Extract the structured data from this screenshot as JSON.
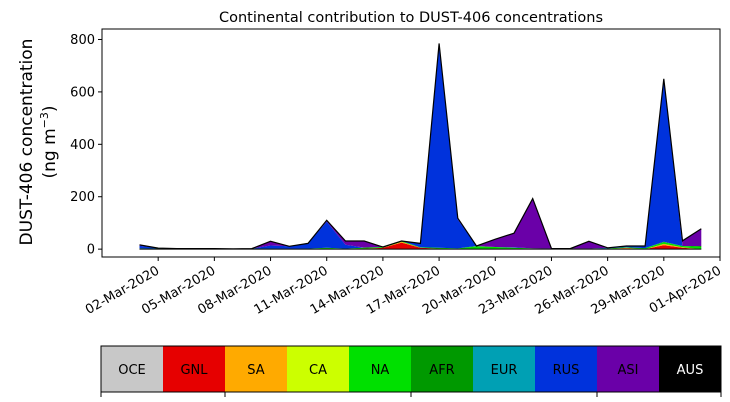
{
  "chart_data": {
    "type": "area",
    "title": "Continental contribution to DUST-406 concentrations",
    "ylabel_line1": "DUST-406 concentration",
    "ylabel_line2_prefix": "(ng m",
    "ylabel_line2_sup": "−3",
    "ylabel_line2_suffix": ")",
    "xlabel": "",
    "ylim": [
      -30,
      840
    ],
    "yticks": [
      0,
      200,
      400,
      600,
      800
    ],
    "xlim": [
      "2020-02-28",
      "2020-04-01"
    ],
    "xticks": [
      "02-Mar-2020",
      "05-Mar-2020",
      "08-Mar-2020",
      "11-Mar-2020",
      "14-Mar-2020",
      "17-Mar-2020",
      "20-Mar-2020",
      "23-Mar-2020",
      "26-Mar-2020",
      "29-Mar-2020",
      "01-Apr-2020"
    ],
    "x": [
      "2020-03-01",
      "2020-03-02",
      "2020-03-03",
      "2020-03-04",
      "2020-03-05",
      "2020-03-06",
      "2020-03-07",
      "2020-03-08",
      "2020-03-09",
      "2020-03-10",
      "2020-03-11",
      "2020-03-12",
      "2020-03-13",
      "2020-03-14",
      "2020-03-15",
      "2020-03-16",
      "2020-03-17",
      "2020-03-18",
      "2020-03-19",
      "2020-03-20",
      "2020-03-21",
      "2020-03-22",
      "2020-03-23",
      "2020-03-24",
      "2020-03-25",
      "2020-03-26",
      "2020-03-27",
      "2020-03-28",
      "2020-03-29",
      "2020-03-30",
      "2020-03-31"
    ],
    "series": [
      {
        "name": "OCE",
        "color": "#c8c8c8",
        "values": [
          0,
          0,
          0,
          0,
          0,
          0,
          0,
          0,
          0,
          0,
          0,
          0,
          0,
          0,
          0,
          0,
          0,
          0,
          0,
          0,
          0,
          0,
          0,
          0,
          0,
          0,
          0,
          0,
          0,
          0,
          0
        ]
      },
      {
        "name": "GNL",
        "color": "#e60000",
        "values": [
          0,
          0,
          0,
          0,
          0,
          0,
          0,
          0,
          0,
          0,
          2,
          0,
          2,
          5,
          25,
          5,
          2,
          0,
          0,
          0,
          0,
          0,
          0,
          0,
          0,
          0,
          3,
          0,
          15,
          5,
          0
        ]
      },
      {
        "name": "SA",
        "color": "#ffaa00",
        "values": [
          0,
          0,
          0,
          0,
          0,
          0,
          0,
          0,
          0,
          0,
          0,
          0,
          0,
          0,
          3,
          0,
          0,
          0,
          0,
          0,
          0,
          0,
          0,
          0,
          0,
          0,
          2,
          0,
          5,
          2,
          0
        ]
      },
      {
        "name": "CA",
        "color": "#ccff00",
        "values": [
          0,
          0,
          0,
          0,
          0,
          0,
          0,
          0,
          0,
          0,
          0,
          0,
          0,
          0,
          0,
          0,
          0,
          0,
          0,
          0,
          0,
          0,
          0,
          0,
          0,
          0,
          0,
          0,
          0,
          0,
          0
        ]
      },
      {
        "name": "NA",
        "color": "#00e000",
        "values": [
          3,
          2,
          1,
          1,
          2,
          1,
          2,
          2,
          1,
          2,
          3,
          2,
          4,
          3,
          3,
          2,
          3,
          3,
          10,
          8,
          5,
          3,
          2,
          2,
          2,
          3,
          2,
          4,
          6,
          5,
          8
        ]
      },
      {
        "name": "AFR",
        "color": "#009900",
        "values": [
          0,
          0,
          0,
          0,
          0,
          0,
          0,
          0,
          0,
          0,
          0,
          0,
          0,
          0,
          0,
          0,
          0,
          0,
          2,
          0,
          0,
          0,
          0,
          0,
          0,
          0,
          0,
          0,
          2,
          0,
          4
        ]
      },
      {
        "name": "EUR",
        "color": "#00a0b4",
        "values": [
          0,
          0,
          0,
          0,
          0,
          0,
          0,
          0,
          0,
          0,
          0,
          0,
          0,
          0,
          0,
          0,
          0,
          0,
          0,
          0,
          0,
          0,
          0,
          0,
          0,
          0,
          0,
          0,
          0,
          0,
          0
        ]
      },
      {
        "name": "RUS",
        "color": "#0032dc",
        "values": [
          10,
          2,
          1,
          1,
          0,
          0,
          0,
          12,
          10,
          20,
          100,
          15,
          0,
          0,
          0,
          15,
          780,
          110,
          0,
          0,
          2,
          0,
          0,
          0,
          0,
          2,
          5,
          8,
          620,
          0,
          0
        ]
      },
      {
        "name": "ASI",
        "color": "#6a00a8",
        "values": [
          3,
          0,
          0,
          0,
          0,
          0,
          0,
          16,
          0,
          0,
          5,
          14,
          25,
          0,
          0,
          0,
          0,
          5,
          0,
          30,
          54,
          190,
          0,
          0,
          28,
          0,
          0,
          0,
          2,
          20,
          66
        ]
      }
    ],
    "totals": [
      16,
      4,
      2,
      2,
      2,
      1,
      2,
      30,
      11,
      22,
      110,
      31,
      31,
      8,
      31,
      22,
      785,
      118,
      12,
      38,
      61,
      193,
      2,
      2,
      30,
      5,
      12,
      12,
      650,
      32,
      78
    ]
  },
  "legend": {
    "labels": [
      "OCE",
      "GNL",
      "SA",
      "CA",
      "NA",
      "AFR",
      "EUR",
      "RUS",
      "ASI",
      "AUS"
    ],
    "colors": [
      "#c8c8c8",
      "#e60000",
      "#ffaa00",
      "#ccff00",
      "#00e000",
      "#009900",
      "#00a0b4",
      "#0032dc",
      "#6a00a8",
      "#000000"
    ],
    "text_colors": [
      "#000000",
      "#000000",
      "#000000",
      "#000000",
      "#000000",
      "#000000",
      "#000000",
      "#000000",
      "#000000",
      "#ffffff"
    ]
  }
}
